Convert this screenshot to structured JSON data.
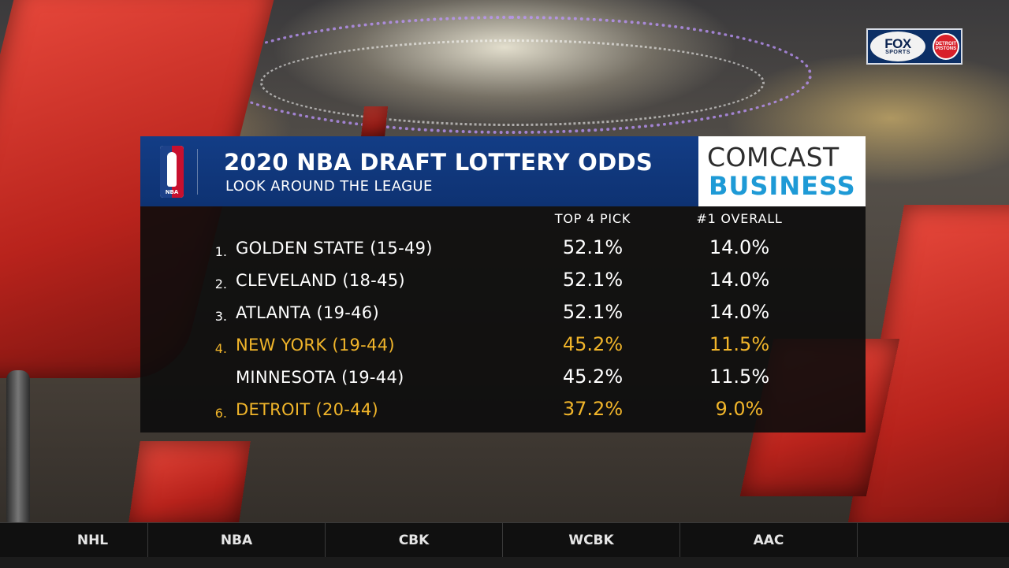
{
  "network": {
    "fox_line1": "FOX",
    "fox_line2": "SPORTS",
    "team_logo_text": "DETROIT PISTONS"
  },
  "graphic": {
    "league_logo_text": "NBA",
    "title": "2020 NBA DRAFT LOTTERY ODDS",
    "subtitle": "LOOK AROUND THE LEAGUE",
    "sponsor_line1": "COMCAST",
    "sponsor_line2": "BUSINESS",
    "columns": [
      "TOP 4 PICK",
      "#1 OVERALL"
    ],
    "rows": [
      {
        "rank": "1.",
        "team": "GOLDEN STATE (15-49)",
        "top4": "52.1%",
        "first": "14.0%",
        "highlight": false
      },
      {
        "rank": "2.",
        "team": "CLEVELAND (18-45)",
        "top4": "52.1%",
        "first": "14.0%",
        "highlight": false
      },
      {
        "rank": "3.",
        "team": "ATLANTA (19-46)",
        "top4": "52.1%",
        "first": "14.0%",
        "highlight": false
      },
      {
        "rank": "4.",
        "team": "NEW YORK (19-44)",
        "top4": "45.2%",
        "first": "11.5%",
        "highlight": true
      },
      {
        "rank": "",
        "team": "MINNESOTA (19-44)",
        "top4": "45.2%",
        "first": "11.5%",
        "highlight": false
      },
      {
        "rank": "6.",
        "team": "DETROIT (20-44)",
        "top4": "37.2%",
        "first": "9.0%",
        "highlight": true
      }
    ],
    "colors": {
      "header_blue": "#133d86",
      "highlight_gold": "#f1b52a",
      "sponsor_blue": "#1e9ad6"
    }
  },
  "ticker": {
    "items": [
      "NHL",
      "NBA",
      "CBK",
      "WCBK",
      "AAC"
    ]
  }
}
